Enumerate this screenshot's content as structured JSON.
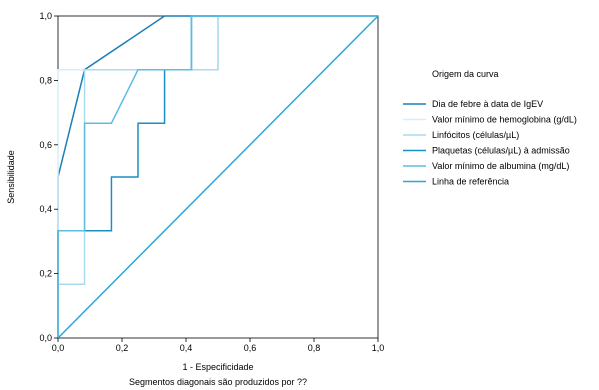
{
  "chart_data": {
    "type": "line",
    "title": "",
    "xlabel": "1 - Especificidade",
    "ylabel": "Sensibilidade",
    "xlim": [
      0,
      1
    ],
    "ylim": [
      0,
      1
    ],
    "x_ticks": [
      "0,0",
      "0,2",
      "0,4",
      "0,6",
      "0,8",
      "1,0"
    ],
    "y_ticks": [
      "0,0",
      "0,2",
      "0,4",
      "0,6",
      "0,8",
      "1,0"
    ],
    "grid": false,
    "legend_title": "Origem da curva",
    "legend_position": "right",
    "footnote": "Segmentos diagonais são produzidos por ??",
    "series": [
      {
        "name": "Dia de febre à data de IgEV",
        "color": "#1a7fb8",
        "x": [
          0,
          0,
          0.083,
          0.333,
          1.0
        ],
        "y": [
          0,
          0.5,
          0.833,
          1.0,
          1.0
        ]
      },
      {
        "name": "Valor mínimo de hemoglobina (g/dL)",
        "color": "#d6eef8",
        "x": [
          0,
          0,
          0.5,
          0.5,
          1.0
        ],
        "y": [
          0,
          0.833,
          0.833,
          1.0,
          1.0
        ]
      },
      {
        "name": "Linfócitos (células/µL)",
        "color": "#a9daf0",
        "x": [
          0,
          0,
          0.083,
          0.083,
          0.167,
          0.167,
          0.5,
          0.5,
          1.0
        ],
        "y": [
          0,
          0.167,
          0.167,
          0.833,
          0.833,
          0.833,
          0.833,
          1.0,
          1.0
        ]
      },
      {
        "name": "Plaquetas (células/µL) à admissão",
        "color": "#1b8fc4",
        "x": [
          0,
          0,
          0.167,
          0.167,
          0.25,
          0.25,
          0.333,
          0.333,
          0.417,
          0.417,
          1.0
        ],
        "y": [
          0,
          0.333,
          0.333,
          0.5,
          0.5,
          0.667,
          0.667,
          0.833,
          0.833,
          1.0,
          1.0
        ]
      },
      {
        "name": "Valor mínimo de albumina (mg/dL)",
        "color": "#5cbde0",
        "x": [
          0,
          0,
          0.083,
          0.083,
          0.167,
          0.25,
          0.417,
          0.417,
          1.0
        ],
        "y": [
          0,
          0.333,
          0.333,
          0.667,
          0.667,
          0.833,
          0.833,
          1.0,
          1.0
        ]
      },
      {
        "name": "Linha de referência",
        "color": "#29a8d6",
        "x": [
          0,
          1.0
        ],
        "y": [
          0,
          1.0
        ]
      }
    ]
  }
}
